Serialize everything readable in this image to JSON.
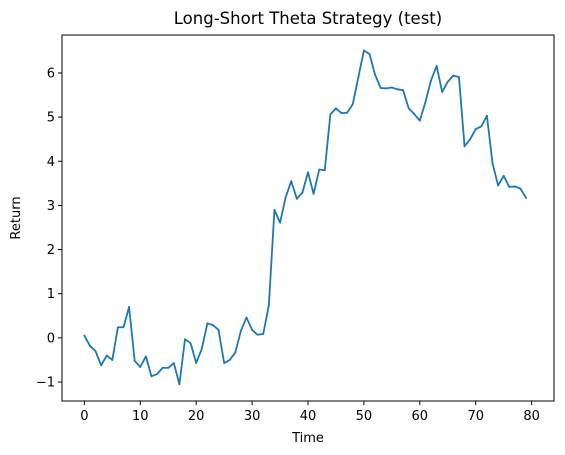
{
  "chart_data": {
    "type": "line",
    "title": "Long-Short Theta Strategy (test)",
    "xlabel": "Time",
    "ylabel": "Return",
    "xlim": [
      -4,
      84
    ],
    "ylim": [
      -1.43,
      6.86
    ],
    "grid": false,
    "legend": "none",
    "xticks": [
      0,
      10,
      20,
      30,
      40,
      50,
      60,
      70,
      80
    ],
    "yticks": [
      -1,
      0,
      1,
      2,
      3,
      4,
      5,
      6
    ],
    "colors": {
      "series": "#1f77b4"
    },
    "series": [
      {
        "x": [
          0,
          1,
          2,
          3,
          4,
          5,
          6,
          7,
          8,
          9,
          10,
          11,
          12,
          13,
          14,
          15,
          16,
          17,
          18,
          19,
          20,
          21,
          22,
          23,
          24,
          25,
          26,
          27,
          28,
          29,
          30,
          31,
          32,
          33,
          34,
          35,
          36,
          37,
          38,
          39,
          40,
          41,
          42,
          43,
          44,
          45,
          46,
          47,
          48,
          49,
          50,
          51,
          52,
          53,
          54,
          55,
          56,
          57,
          58,
          59,
          60,
          61,
          62,
          63,
          64,
          65,
          66,
          67,
          68,
          69,
          70,
          71,
          72,
          73,
          74,
          75,
          76,
          77,
          78,
          79
        ],
        "values": [
          0.05,
          -0.18,
          -0.3,
          -0.62,
          -0.4,
          -0.5,
          0.24,
          0.24,
          0.7,
          -0.52,
          -0.66,
          -0.42,
          -0.87,
          -0.82,
          -0.68,
          -0.68,
          -0.57,
          -1.05,
          -0.03,
          -0.12,
          -0.57,
          -0.25,
          0.33,
          0.29,
          0.18,
          -0.57,
          -0.5,
          -0.33,
          0.16,
          0.46,
          0.18,
          0.07,
          0.09,
          0.74,
          2.9,
          2.61,
          3.18,
          3.55,
          3.15,
          3.29,
          3.75,
          3.26,
          3.81,
          3.8,
          5.06,
          5.2,
          5.09,
          5.1,
          5.29,
          5.9,
          6.51,
          6.43,
          5.96,
          5.66,
          5.65,
          5.67,
          5.63,
          5.61,
          5.2,
          5.07,
          4.92,
          5.34,
          5.83,
          6.16,
          5.57,
          5.8,
          5.94,
          5.91,
          4.34,
          4.5,
          4.73,
          4.79,
          5.03,
          3.96,
          3.45,
          3.67,
          3.42,
          3.43,
          3.38,
          3.17
        ]
      }
    ]
  }
}
